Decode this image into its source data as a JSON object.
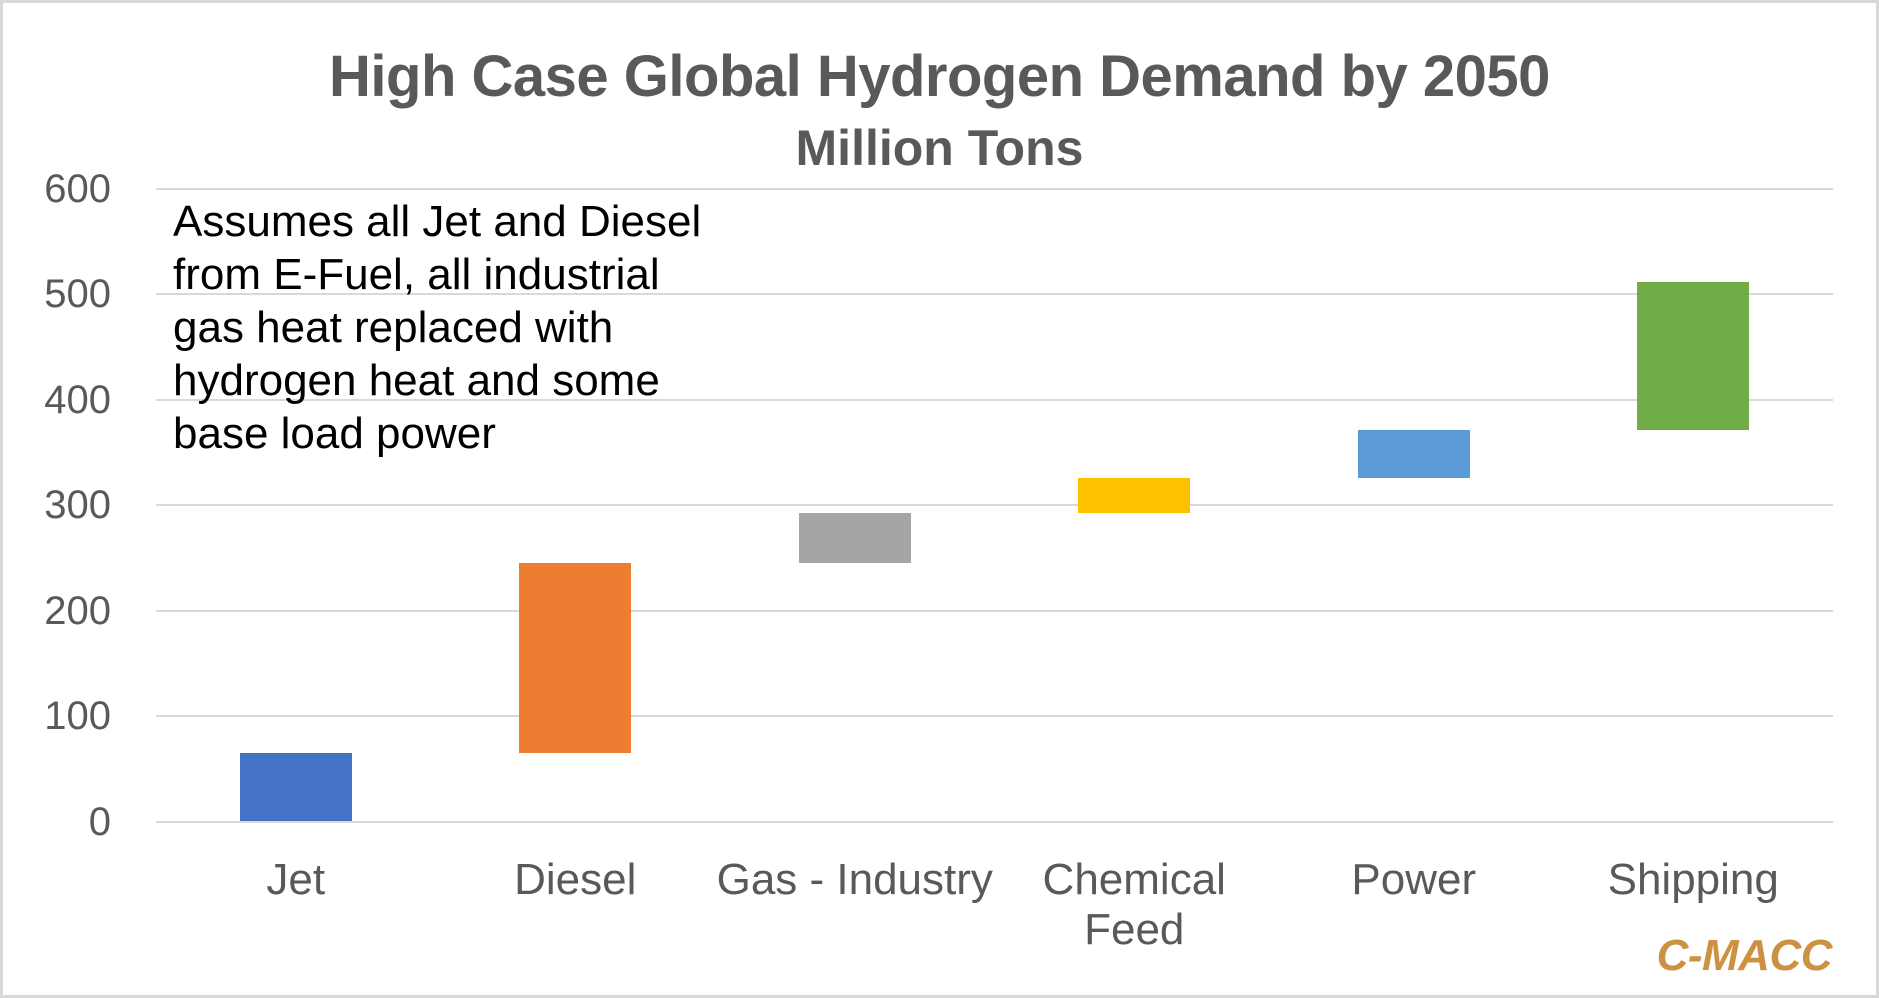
{
  "chart_data": {
    "type": "bar",
    "subtype": "waterfall",
    "title": "High Case Global Hydrogen Demand by 2050",
    "subtitle": "Million Tons",
    "annotation": "Assumes all Jet and Diesel\nfrom E-Fuel, all industrial\ngas heat replaced with\nhydrogen heat and some\nbase load power",
    "categories": [
      "Jet",
      "Diesel",
      "Gas - Industry",
      "Chemical Feed",
      "Power",
      "Shipping"
    ],
    "segments": [
      {
        "label": "Jet",
        "display_label": "Jet",
        "start": 0,
        "end": 65,
        "value": 65,
        "color": "#4472c4"
      },
      {
        "label": "Diesel",
        "display_label": "Diesel",
        "start": 65,
        "end": 245,
        "value": 180,
        "color": "#ed7d31"
      },
      {
        "label": "Gas - Industry",
        "display_label": "Gas - Industry",
        "start": 245,
        "end": 293,
        "value": 48,
        "color": "#a5a5a5"
      },
      {
        "label": "Chemical Feed",
        "display_label": "Chemical\nFeed",
        "start": 293,
        "end": 326,
        "value": 33,
        "color": "#ffc000"
      },
      {
        "label": "Power",
        "display_label": "Power",
        "start": 326,
        "end": 371,
        "value": 45,
        "color": "#5b9bd5"
      },
      {
        "label": "Shipping",
        "display_label": "Shipping",
        "start": 371,
        "end": 512,
        "value": 141,
        "color": "#70ad47"
      }
    ],
    "y_axis": {
      "min": 0,
      "max": 600,
      "step": 100,
      "ticks": [
        0,
        100,
        200,
        300,
        400,
        500,
        600
      ]
    },
    "x_axis": {
      "label": ""
    },
    "grid": true,
    "legend": false,
    "colors": {
      "text": "#595959",
      "annotation_text": "#000000",
      "gridline": "#d9d9d9",
      "background": "#ffffff",
      "border": "#d8d8d8"
    }
  },
  "branding": {
    "logo_text": "C-MACC",
    "logo_color": "#cc9143"
  }
}
